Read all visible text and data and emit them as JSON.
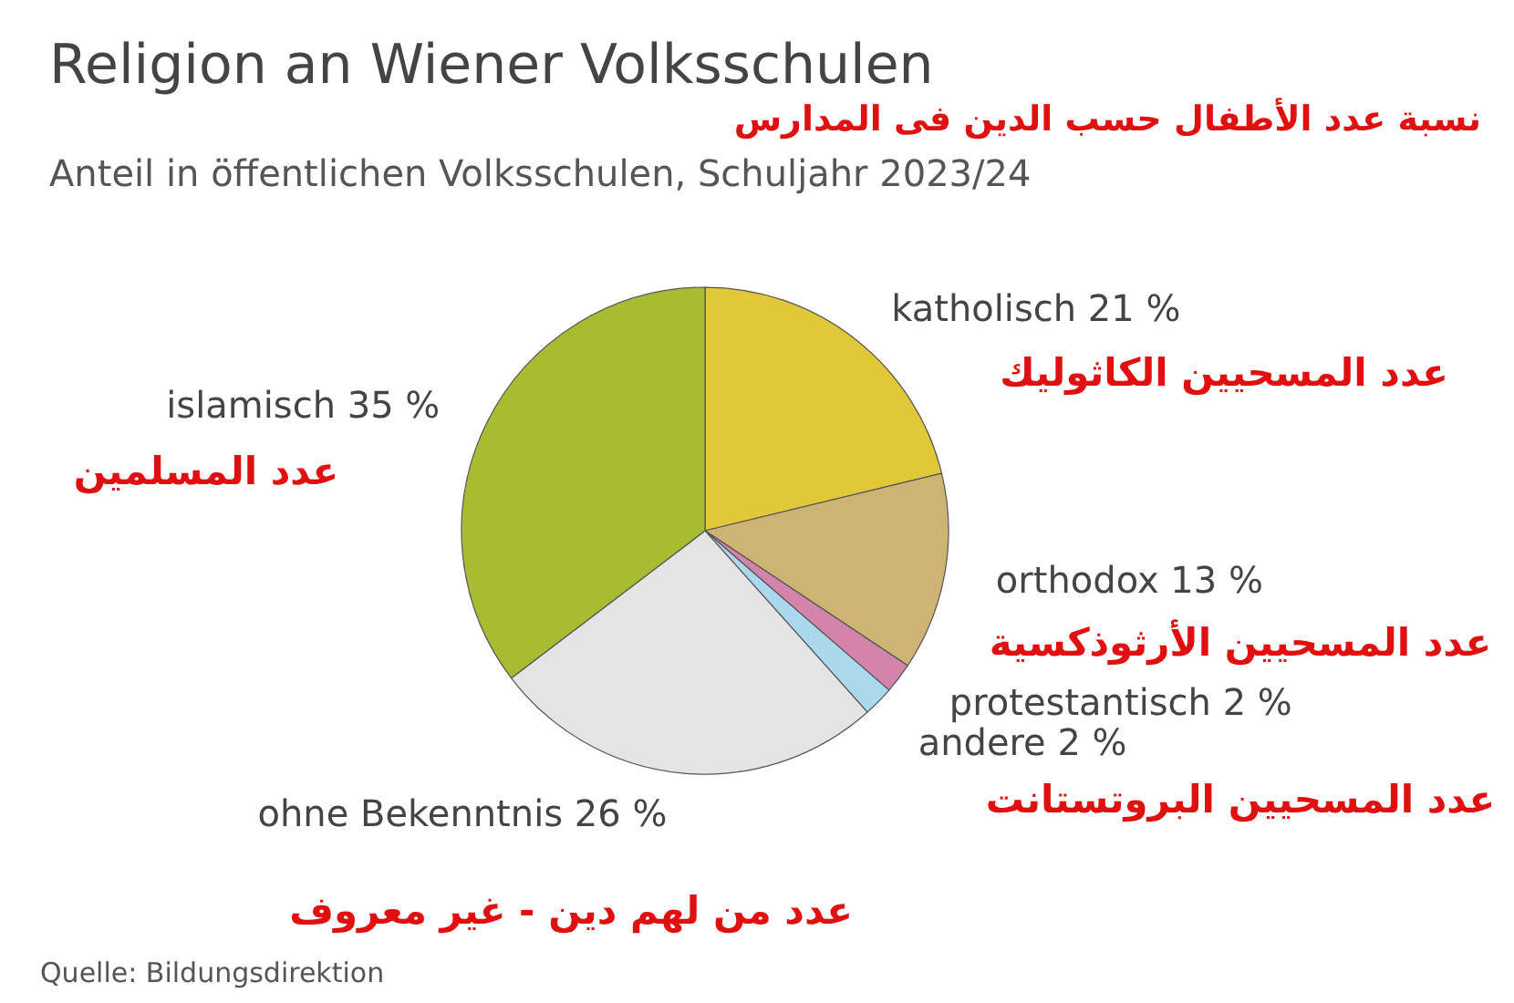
{
  "chart_data": {
    "type": "pie",
    "title": "Religion an Wiener Volksschulen",
    "subtitle": "Anteil in öffentlichen Volksschulen, Schuljahr 2023/24",
    "categories": [
      "katholisch",
      "orthodox",
      "protestantisch",
      "andere",
      "ohne Bekenntnis",
      "islamisch"
    ],
    "values": [
      21,
      13,
      2,
      2,
      26,
      35
    ],
    "value_labels": [
      "21 %",
      "13 %",
      "2 %",
      "2 %",
      "26 %",
      "35 %"
    ],
    "colors": [
      "#e0c838",
      "#cdb474",
      "#d484aa",
      "#acd8ee",
      "#e4e4e4",
      "#a8bc32"
    ],
    "legend": false,
    "annotations": [
      "نسبة عدد الأطفال حسب الدين فى المدارس",
      "عدد المسلمين",
      "عدد المسحيين الكاثوليك",
      "عدد المسحيين الأرثوذكسية",
      "عدد المسحيين البروتستانت",
      "عدد من لهم دين - غير معروف",
      "Quelle: Bildungsdirektion"
    ]
  }
}
